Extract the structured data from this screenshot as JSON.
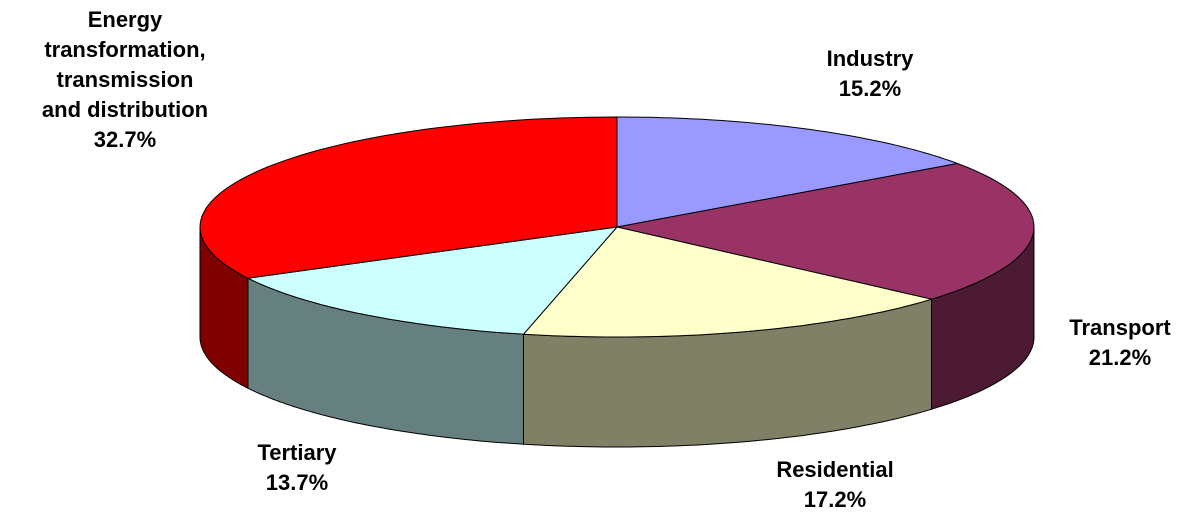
{
  "chart_data": {
    "type": "pie3d",
    "categories": [
      "Industry",
      "Transport",
      "Residential",
      "Tertiary",
      "Energy transformation, transmission and distribution"
    ],
    "values": [
      15.2,
      21.2,
      17.2,
      13.7,
      32.7
    ],
    "value_labels": [
      "15.2%",
      "21.2%",
      "17.2%",
      "13.7%",
      "32.7%"
    ],
    "colors": [
      "#9999ff",
      "#993366",
      "#ffffcc",
      "#ccffff",
      "#ff0000"
    ]
  }
}
